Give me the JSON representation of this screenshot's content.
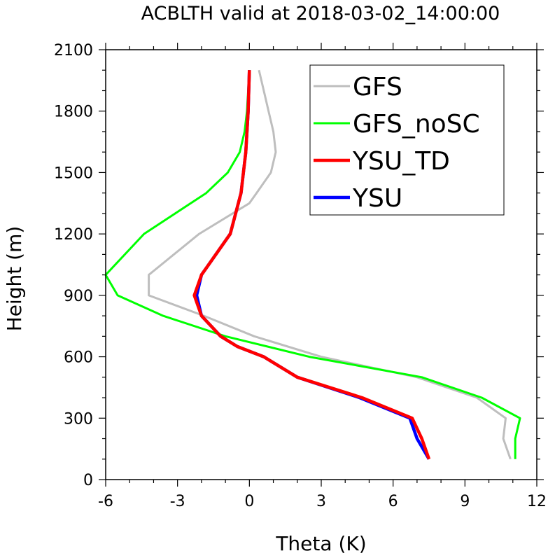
{
  "chart_data": {
    "type": "line",
    "title": "ACBLTH valid at 2018-03-02_14:00:00",
    "xlabel": "Theta (K)",
    "ylabel": "Height (m)",
    "xlim": [
      -6,
      12
    ],
    "ylim": [
      0,
      2100
    ],
    "xticks": [
      "-6",
      "-3",
      "0",
      "3",
      "6",
      "9",
      "12"
    ],
    "yticks": [
      "0",
      "300",
      "600",
      "900",
      "1200",
      "1500",
      "1800",
      "2100"
    ],
    "legend_position": "top-right",
    "series": [
      {
        "name": "GFS",
        "color": "#bebebe",
        "points": [
          [
            10.9,
            100
          ],
          [
            10.6,
            200
          ],
          [
            10.7,
            300
          ],
          [
            9.5,
            400
          ],
          [
            7.0,
            500
          ],
          [
            3.0,
            600
          ],
          [
            0.2,
            700
          ],
          [
            -1.9,
            800
          ],
          [
            -4.2,
            900
          ],
          [
            -4.2,
            1000
          ],
          [
            -2.1,
            1200
          ],
          [
            0.0,
            1350
          ],
          [
            0.3,
            1400
          ],
          [
            0.9,
            1500
          ],
          [
            1.1,
            1600
          ],
          [
            1.0,
            1700
          ],
          [
            0.8,
            1800
          ],
          [
            0.6,
            1900
          ],
          [
            0.4,
            2000
          ]
        ]
      },
      {
        "name": "GFS_noSC",
        "color": "#00ff00",
        "points": [
          [
            11.1,
            100
          ],
          [
            11.1,
            200
          ],
          [
            11.3,
            300
          ],
          [
            9.7,
            400
          ],
          [
            7.2,
            500
          ],
          [
            2.5,
            600
          ],
          [
            -1.0,
            700
          ],
          [
            -3.6,
            800
          ],
          [
            -5.5,
            900
          ],
          [
            -6.0,
            1000
          ],
          [
            -4.4,
            1200
          ],
          [
            -1.8,
            1400
          ],
          [
            -0.9,
            1500
          ],
          [
            -0.4,
            1600
          ],
          [
            -0.2,
            1700
          ],
          [
            -0.1,
            1800
          ],
          [
            -0.05,
            1900
          ],
          [
            0.0,
            2000
          ]
        ]
      },
      {
        "name": "YSU_TD",
        "color": "#ff0000",
        "points": [
          [
            7.5,
            100
          ],
          [
            7.2,
            200
          ],
          [
            6.8,
            300
          ],
          [
            4.7,
            400
          ],
          [
            2.0,
            500
          ],
          [
            0.6,
            600
          ],
          [
            -0.5,
            650
          ],
          [
            -1.2,
            700
          ],
          [
            -2.0,
            800
          ],
          [
            -2.3,
            900
          ],
          [
            -2.0,
            1000
          ],
          [
            -0.8,
            1200
          ],
          [
            -0.35,
            1400
          ],
          [
            -0.15,
            1600
          ],
          [
            -0.05,
            1800
          ],
          [
            0.0,
            2000
          ]
        ]
      },
      {
        "name": "YSU",
        "color": "#0000ff",
        "points": [
          [
            7.5,
            100
          ],
          [
            7.0,
            200
          ],
          [
            6.7,
            300
          ],
          [
            4.6,
            400
          ],
          [
            2.0,
            500
          ],
          [
            0.6,
            600
          ],
          [
            -0.5,
            650
          ],
          [
            -1.2,
            700
          ],
          [
            -2.0,
            800
          ],
          [
            -2.2,
            900
          ],
          [
            -2.0,
            1000
          ],
          [
            -0.8,
            1200
          ],
          [
            -0.35,
            1400
          ],
          [
            -0.15,
            1600
          ],
          [
            -0.05,
            1800
          ],
          [
            0.0,
            2000
          ]
        ]
      }
    ]
  }
}
